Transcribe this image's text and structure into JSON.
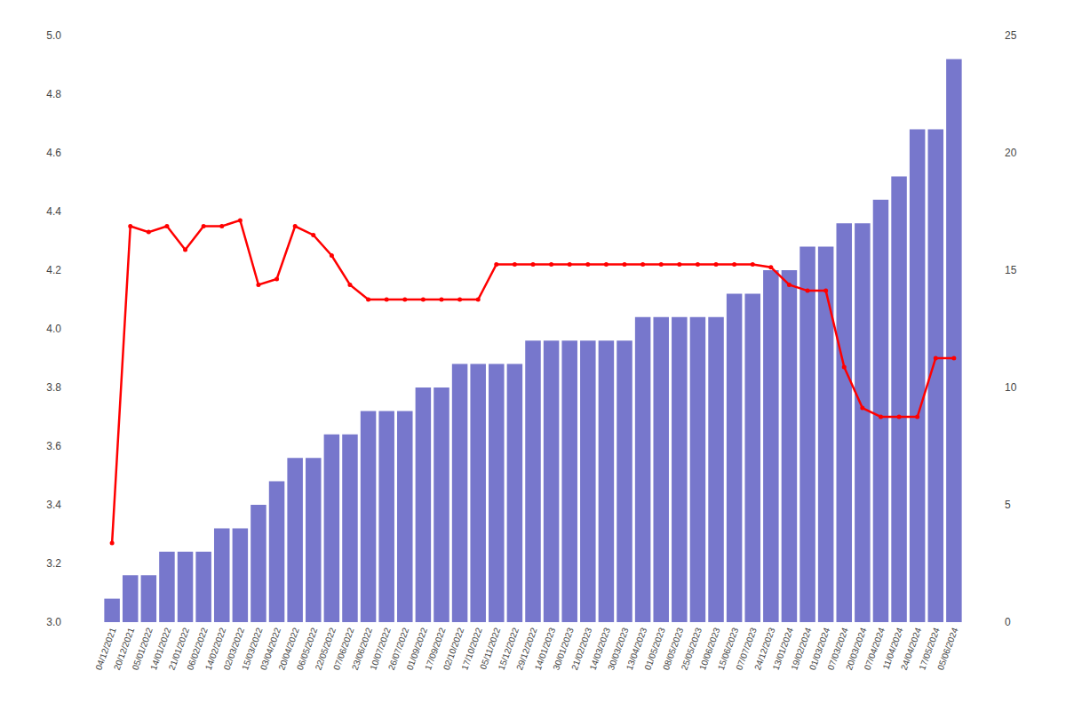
{
  "chart_data": {
    "type": "bar",
    "categories": [
      "04/12/2021",
      "20/12/2021",
      "05/01/2022",
      "14/01/2022",
      "21/01/2022",
      "06/02/2022",
      "14/02/2022",
      "02/03/2022",
      "15/03/2022",
      "03/04/2022",
      "20/04/2022",
      "06/05/2022",
      "22/05/2022",
      "07/06/2022",
      "23/06/2022",
      "10/07/2022",
      "26/07/2022",
      "01/09/2022",
      "17/09/2022",
      "02/10/2022",
      "17/10/2022",
      "05/11/2022",
      "15/12/2022",
      "29/12/2022",
      "14/01/2023",
      "30/01/2023",
      "21/02/2023",
      "14/03/2023",
      "30/03/2023",
      "13/04/2023",
      "01/05/2023",
      "08/05/2023",
      "25/05/2023",
      "10/06/2023",
      "15/06/2023",
      "07/07/2023",
      "24/12/2023",
      "13/01/2024",
      "19/02/2024",
      "01/03/2024",
      "07/03/2024",
      "20/03/2024",
      "07/04/2024",
      "11/04/2024",
      "24/04/2024",
      "17/05/2024",
      "05/06/2024"
    ],
    "series": [
      {
        "type": "bar",
        "axis": "y2",
        "color": "#7777cc",
        "values": [
          1,
          2,
          2,
          3,
          3,
          3,
          4,
          4,
          5,
          6,
          7,
          7,
          8,
          8,
          9,
          9,
          9,
          10,
          10,
          11,
          11,
          11,
          11,
          12,
          12,
          12,
          12,
          12,
          12,
          13,
          13,
          13,
          13,
          13,
          14,
          14,
          15,
          15,
          16,
          16,
          17,
          17,
          18,
          19,
          21,
          21,
          24
        ]
      },
      {
        "type": "line",
        "axis": "y",
        "color": "#ff0000",
        "marker": "circle",
        "values": [
          3.27,
          4.35,
          4.33,
          4.35,
          4.27,
          4.35,
          4.35,
          4.37,
          4.15,
          4.17,
          4.35,
          4.32,
          4.25,
          4.15,
          4.1,
          4.1,
          4.1,
          4.1,
          4.1,
          4.1,
          4.1,
          4.22,
          4.22,
          4.22,
          4.22,
          4.22,
          4.22,
          4.22,
          4.22,
          4.22,
          4.22,
          4.22,
          4.22,
          4.22,
          4.22,
          4.22,
          4.21,
          4.15,
          4.13,
          4.13,
          3.87,
          3.73,
          3.7,
          3.7,
          3.7,
          3.9,
          3.9
        ]
      }
    ],
    "ylim": [
      3.0,
      5.0
    ],
    "yticks": [
      {
        "value": 3.0,
        "label": "3.0"
      },
      3.2,
      3.4,
      3.6,
      3.8,
      {
        "value": 4.0,
        "label": "4.0"
      },
      4.2,
      4.4,
      4.6,
      4.8,
      {
        "value": 5.0,
        "label": "5.0"
      }
    ],
    "y2lim": [
      0,
      25
    ],
    "y2ticks": [
      0,
      5,
      10,
      15,
      20,
      25
    ],
    "grid": false
  }
}
